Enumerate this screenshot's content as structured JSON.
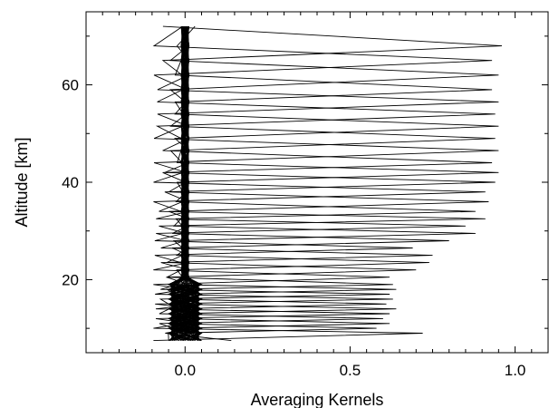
{
  "chart_data": {
    "type": "line",
    "title": "",
    "xlabel": "Averaging Kernels",
    "ylabel": "Altitude [km]",
    "xlim": [
      -0.3,
      1.1
    ],
    "ylim": [
      5,
      75
    ],
    "xticks": [
      0.0,
      0.5,
      1.0
    ],
    "xtick_labels": [
      "0.0",
      "0.5",
      "1.0"
    ],
    "yticks": [
      20,
      40,
      60
    ],
    "ytick_labels": [
      "20",
      "40",
      "60"
    ],
    "grid": false,
    "legend": "none",
    "line_color": "#000000",
    "altitudes": [
      7.5,
      9,
      10,
      11,
      12,
      13,
      14,
      15,
      16,
      17,
      18,
      19,
      20.5,
      22,
      23.5,
      25,
      26.5,
      28,
      29.5,
      31,
      32.5,
      34,
      36,
      38,
      40,
      42,
      44,
      46.5,
      49,
      51.5,
      54,
      56.5,
      59,
      62,
      65,
      68,
      72
    ],
    "peak_values": [
      0.14,
      0.72,
      0.58,
      0.62,
      0.6,
      0.62,
      0.64,
      0.61,
      0.63,
      0.62,
      0.64,
      0.63,
      0.62,
      0.7,
      0.74,
      0.75,
      0.69,
      0.8,
      0.88,
      0.85,
      0.91,
      0.88,
      0.92,
      0.91,
      0.94,
      0.95,
      0.93,
      0.95,
      0.94,
      0.95,
      0.94,
      0.95,
      0.93,
      0.95,
      0.93,
      0.96,
      0.03
    ],
    "side_lobe": -0.06
  }
}
